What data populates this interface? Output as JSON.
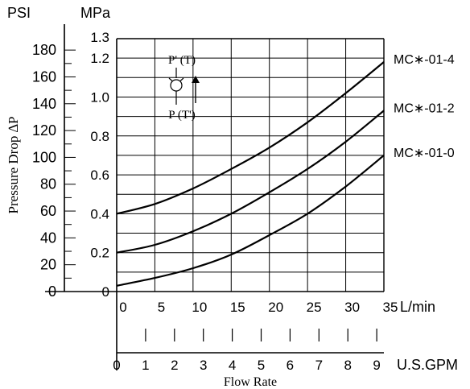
{
  "chart_data": {
    "type": "line",
    "title": "",
    "xlabel": "Flow Rate",
    "ylabel": "Pressure Drop ∆P",
    "x_unit_primary": "L/min",
    "x_unit_secondary": "U.S.GPM",
    "y_unit_left": "PSI",
    "y_unit_right": "MPa",
    "xlim": [
      0,
      35
    ],
    "ylim_mpa": [
      0,
      1.3
    ],
    "ylim_psi": [
      0,
      188.5
    ],
    "grid": true,
    "x_ticks_lpm": [
      "0",
      "5",
      "10",
      "15",
      "20",
      "25",
      "30",
      "35"
    ],
    "x_ticks_gpm": [
      "0",
      "1",
      "2",
      "3",
      "4",
      "5",
      "6",
      "7",
      "8",
      "9"
    ],
    "y_ticks_psi": [
      "0",
      "20",
      "40",
      "60",
      "80",
      "100",
      "120",
      "140",
      "160",
      "180"
    ],
    "y_ticks_mpa": [
      "0",
      "0.2",
      "0.4",
      "0.6",
      "0.8",
      "1.0",
      "1.2",
      "1.3"
    ],
    "x": [
      0,
      5,
      10,
      15,
      20,
      25,
      30,
      35
    ],
    "series": [
      {
        "name": "MC∗-01-4",
        "values": [
          0.4,
          0.45,
          0.53,
          0.63,
          0.74,
          0.87,
          1.02,
          1.18
        ]
      },
      {
        "name": "MC∗-01-2",
        "values": [
          0.2,
          0.24,
          0.31,
          0.4,
          0.51,
          0.63,
          0.77,
          0.93
        ]
      },
      {
        "name": "MC∗-01-0",
        "values": [
          0.03,
          0.07,
          0.12,
          0.19,
          0.29,
          0.4,
          0.54,
          0.7
        ]
      }
    ],
    "legend_placement": "right of curves (line-end labels)",
    "symbol": {
      "label_top": "P' (T)",
      "label_bottom": "P (T')",
      "icon": "check-valve-symbol-icon"
    }
  }
}
